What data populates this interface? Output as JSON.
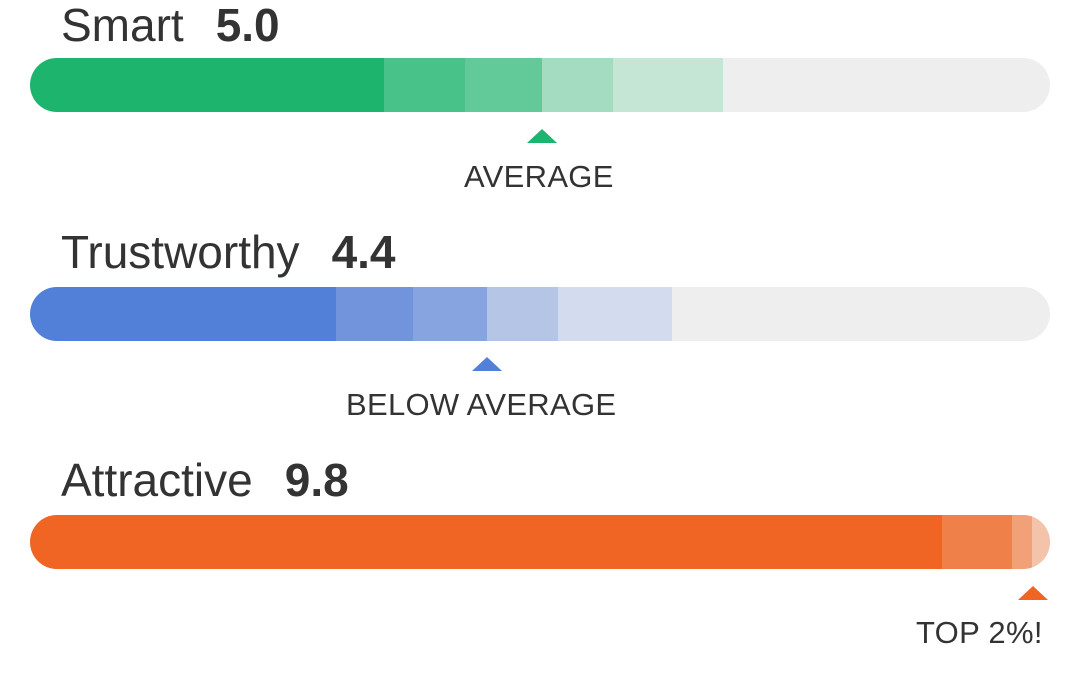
{
  "traits": [
    {
      "name": "Smart",
      "score": "5.0",
      "label": "AVERAGE",
      "color": "#1db56e",
      "bands": [
        "#1db56e",
        "#48c288",
        "#62c998",
        "#a3dcc0",
        "#c5e5d5"
      ]
    },
    {
      "name": "Trustworthy",
      "score": "4.4",
      "label": "BELOW AVERAGE",
      "color": "#527fd8",
      "bands": [
        "#527fd8",
        "#7294dd",
        "#87a3e0",
        "#b5c5e6",
        "#d3dcef"
      ]
    },
    {
      "name": "Attractive",
      "score": "9.8",
      "label": "TOP 2%!",
      "color": "#f06424",
      "bands": [
        "#f06424",
        "#f08049",
        "#f1a077",
        "#f3c4aa"
      ]
    }
  ]
}
